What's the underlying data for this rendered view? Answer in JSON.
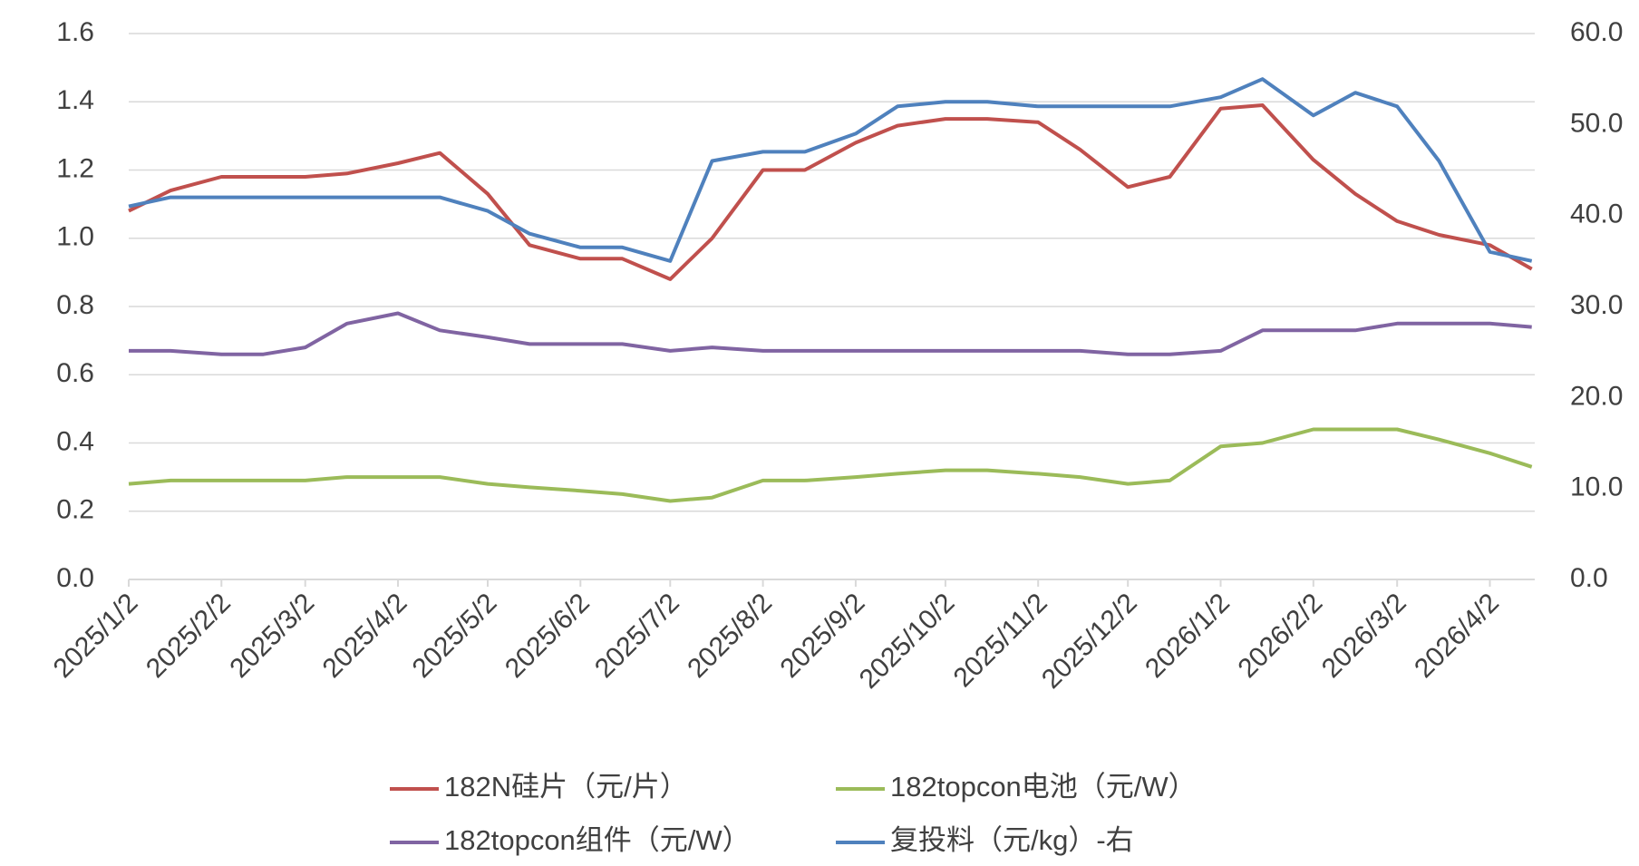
{
  "chart_data": {
    "type": "line",
    "x": [
      "2025/1/2",
      "2025/1/16",
      "2025/2/2",
      "2025/2/16",
      "2025/3/2",
      "2025/3/16",
      "2025/4/2",
      "2025/4/16",
      "2025/5/2",
      "2025/5/16",
      "2025/6/2",
      "2025/6/16",
      "2025/7/2",
      "2025/7/16",
      "2025/8/2",
      "2025/8/16",
      "2025/9/2",
      "2025/9/16",
      "2025/10/2",
      "2025/10/16",
      "2025/11/2",
      "2025/11/16",
      "2025/12/2",
      "2025/12/16",
      "2026/1/2",
      "2026/1/16",
      "2026/2/2",
      "2026/2/16",
      "2026/3/2",
      "2026/3/16",
      "2026/4/2",
      "2026/4/16"
    ],
    "xlim": [
      "2025/1/2",
      "2026/4/17"
    ],
    "xticks": [
      "2025/1/2",
      "2025/2/2",
      "2025/3/2",
      "2025/4/2",
      "2025/5/2",
      "2025/6/2",
      "2025/7/2",
      "2025/8/2",
      "2025/9/2",
      "2025/10/2",
      "2025/11/2",
      "2025/12/2",
      "2026/1/2",
      "2026/2/2",
      "2026/3/2",
      "2026/4/2"
    ],
    "ylim": [
      0,
      1.6
    ],
    "yticks": [
      {
        "value": 0,
        "label": "0.0"
      },
      0.2,
      0.4,
      0.6,
      0.8,
      {
        "value": 1,
        "label": "1.0"
      },
      1.2,
      1.4,
      1.6
    ],
    "y2lim": [
      0,
      60
    ],
    "y2ticks": [
      {
        "value": 0,
        "label": "0.0"
      },
      {
        "value": 10,
        "label": "10.0"
      },
      {
        "value": 20,
        "label": "20.0"
      },
      {
        "value": 30,
        "label": "30.0"
      },
      {
        "value": 40,
        "label": "40.0"
      },
      {
        "value": 50,
        "label": "50.0"
      },
      {
        "value": 60,
        "label": "60.0"
      }
    ],
    "grid": true,
    "legend": "bottom",
    "series": [
      {
        "name": "182N硅片（元/片）",
        "color": "#c0504d",
        "values": [
          1.08,
          1.14,
          1.18,
          1.18,
          1.18,
          1.19,
          1.22,
          1.25,
          1.13,
          0.98,
          0.94,
          0.94,
          0.88,
          1.0,
          1.2,
          1.2,
          1.28,
          1.33,
          1.35,
          1.35,
          1.34,
          1.26,
          1.15,
          1.18,
          1.38,
          1.39,
          1.23,
          1.13,
          1.05,
          1.01,
          0.98,
          0.91
        ]
      },
      {
        "name": "182topcon电池（元/W）",
        "color": "#9bbb59",
        "values": [
          0.28,
          0.29,
          0.29,
          0.29,
          0.29,
          0.3,
          0.3,
          0.3,
          0.28,
          0.27,
          0.26,
          0.25,
          0.23,
          0.24,
          0.29,
          0.29,
          0.3,
          0.31,
          0.32,
          0.32,
          0.31,
          0.3,
          0.28,
          0.29,
          0.39,
          0.4,
          0.44,
          0.44,
          0.44,
          0.41,
          0.37,
          0.33
        ]
      },
      {
        "name": "182topcon组件（元/W）",
        "color": "#8064a2",
        "values": [
          0.67,
          0.67,
          0.66,
          0.66,
          0.68,
          0.75,
          0.78,
          0.73,
          0.71,
          0.69,
          0.69,
          0.69,
          0.67,
          0.68,
          0.67,
          0.67,
          0.67,
          0.67,
          0.67,
          0.67,
          0.67,
          0.67,
          0.66,
          0.66,
          0.67,
          0.73,
          0.73,
          0.73,
          0.75,
          0.75,
          0.75,
          0.74
        ]
      },
      {
        "name": "复投料（元/kg）-右",
        "color": "#4f81bd",
        "axis": "y2",
        "values": [
          41,
          42,
          42,
          42,
          42,
          42,
          42,
          42,
          40.5,
          38,
          36.5,
          36.5,
          35,
          46,
          47,
          47,
          49,
          52,
          52.5,
          52.5,
          52,
          52,
          52,
          52,
          53,
          55,
          51,
          53.5,
          52,
          46,
          36,
          35
        ]
      }
    ]
  }
}
